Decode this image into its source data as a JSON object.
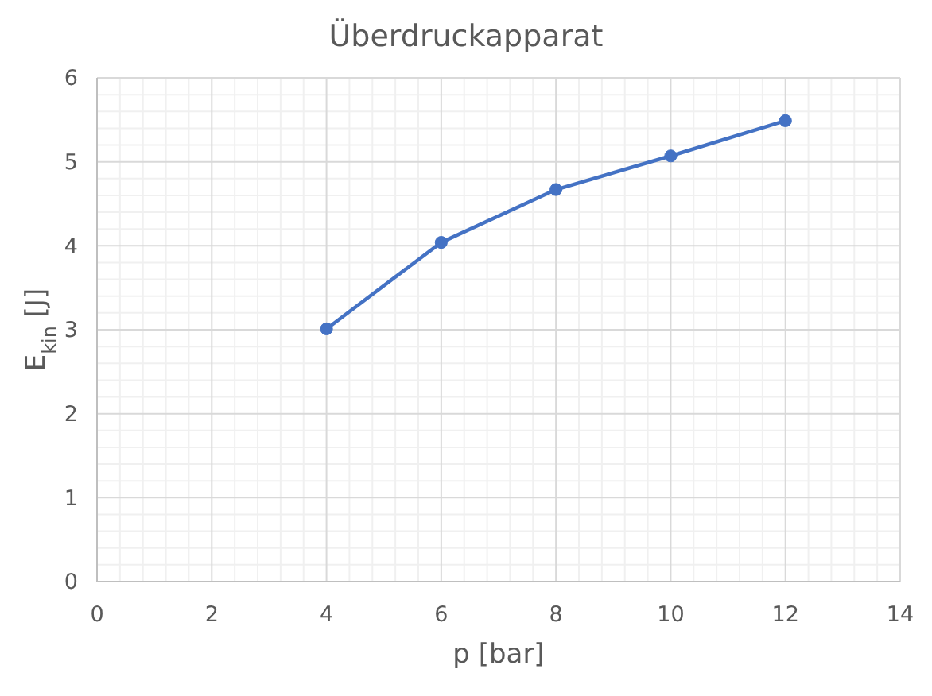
{
  "chart_data": {
    "type": "line",
    "title": "Überdruckapparat",
    "xlabel": "p [bar]",
    "ylabel": "E$_{kin}$ [J]",
    "x": [
      4,
      6,
      8,
      10,
      12
    ],
    "series": [
      {
        "color": "#4472c4",
        "values": [
          3.01,
          4.04,
          4.67,
          5.07,
          5.49
        ]
      }
    ],
    "xlim": [
      0,
      14
    ],
    "xticks": [
      0,
      2,
      4,
      6,
      8,
      10,
      12,
      14
    ],
    "ylim": [
      0,
      6
    ],
    "yticks": [
      0,
      1,
      2,
      3,
      4,
      5,
      6
    ],
    "grid": true,
    "marker": "circle",
    "line_style": "solid"
  }
}
